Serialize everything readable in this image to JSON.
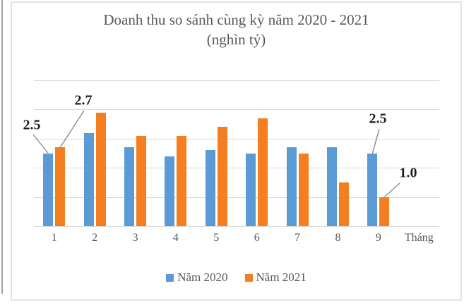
{
  "chart_data": {
    "type": "bar",
    "title": "Doanh thu so sánh cùng kỳ năm 2020 - 2021",
    "subtitle": "(nghìn tỷ)",
    "categories": [
      "1",
      "2",
      "3",
      "4",
      "5",
      "6",
      "7",
      "8",
      "9"
    ],
    "xlabel": "Tháng",
    "series": [
      {
        "name": "Năm 2020",
        "color": "#5B9BD5",
        "values": [
          2.5,
          3.2,
          2.7,
          2.4,
          2.6,
          2.5,
          2.7,
          2.7,
          2.5
        ]
      },
      {
        "name": "Năm 2021",
        "color": "#F57E20",
        "values": [
          2.7,
          3.9,
          3.1,
          3.1,
          3.4,
          3.7,
          2.5,
          1.5,
          1.0
        ]
      }
    ],
    "ylim": [
      0,
      5
    ],
    "gridline_step": 1,
    "grid": true,
    "legend_position": "bottom",
    "colors": {
      "gridline": "#d9d9d9",
      "label": "#595959",
      "annotation": "#1f1f1f",
      "leader_line": "#8c8c8c"
    },
    "annotations": [
      {
        "text": "2.5",
        "series": "Năm 2020",
        "category": "1"
      },
      {
        "text": "2.7",
        "series": "Năm 2021",
        "category": "1"
      },
      {
        "text": "2.5",
        "series": "Năm 2020",
        "category": "9"
      },
      {
        "text": "1.0",
        "series": "Năm 2021",
        "category": "9"
      }
    ]
  }
}
